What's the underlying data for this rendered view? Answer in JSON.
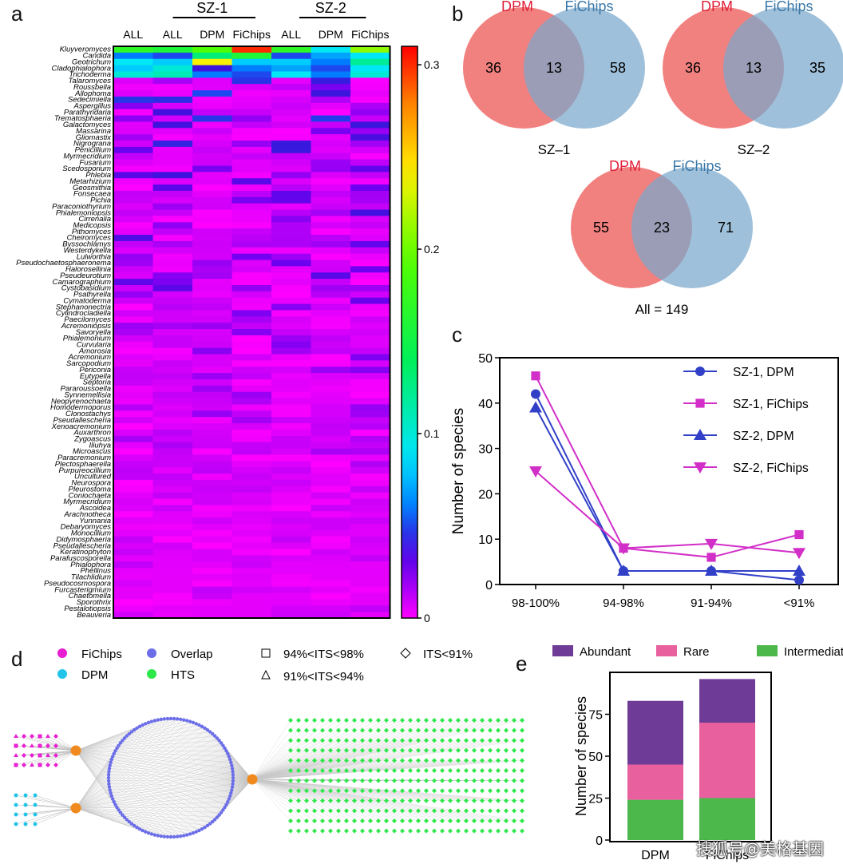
{
  "panel_labels": {
    "a": "a",
    "b": "b",
    "c": "c",
    "d": "d",
    "e": "e"
  },
  "watermark": "搜狐号@美格基因",
  "chart_data": [
    {
      "panel": "a",
      "type": "heatmap",
      "group_headers": [
        "SZ-1",
        "SZ-2"
      ],
      "columns": [
        "ALL",
        "ALL",
        "DPM",
        "FiChips",
        "ALL",
        "DPM",
        "FiChips"
      ],
      "colorbar": {
        "ticks": [
          "0.3",
          "0.2",
          "0.1",
          "0"
        ],
        "range": [
          0,
          0.31
        ]
      },
      "rows": [
        "Kluyveromyces",
        "Candida",
        "Geotrichum",
        "Cladophialophora",
        "Trichoderma",
        "Talaromyces",
        "Roussbella",
        "Allophoma",
        "Sedecimiella",
        "Aspergillus",
        "Parathyridaria",
        "Trematosphaeria",
        "Galactomyces",
        "Massarina",
        "Gliomastix",
        "Nigrograna",
        "Penicillium",
        "Myrmecridium",
        "Fusarium",
        "Scedosporium",
        "Phlebia",
        "Metarhizium",
        "Geosmithia",
        "Fonsecaea",
        "Pichia",
        "Paraconiothyrium",
        "Phialemoniopsis",
        "Cirrenalia",
        "Medicopsis",
        "Pithomyces",
        "Cheiromyces",
        "Byssochlamys",
        "Westerdykella",
        "Lulworthia",
        "Pseudochaetosphaeronema",
        "Halorosellinia",
        "Pseudeurotium",
        "Camarographium",
        "Cystobasidium",
        "Psathyrella",
        "Cymatoderma",
        "Stephanonectria",
        "Cylindrocladiella",
        "Paecilomyces",
        "Acremoniopsis",
        "Savoryella",
        "Phialemonium",
        "Curvularia",
        "Amorosia",
        "Acremonium",
        "Sarcopodium",
        "Periconia",
        "Eutypella",
        "Septoria",
        "Pararoussoella",
        "Synnemellisia",
        "Neopyrenochaeta",
        "Homodermoporus",
        "Clonostachys",
        "Pseudallescheria",
        "Xenoacremonium",
        "Auxarthron",
        "Zygoascus",
        "Iliuhya",
        "Microascus",
        "Paracremonium",
        "Plectosphaerella",
        "Purpureocillium",
        "Uncultured",
        "Neurospora",
        "Pleurostoma",
        "Coniochaeta",
        "Myrmecridium",
        "Ascoidea",
        "Arachnotheca",
        "Yunnania",
        "Debaryomyces",
        "Monocillium",
        "Didymosphaeria",
        "Pseudallescheria",
        "Keratinophyton",
        "Parafuscosporella",
        "Phialophora",
        "Phellinus",
        "Tilachlidium",
        "Pseudocosmospora",
        "Furcasterigmium",
        "Chaetomella",
        "Sporothrix",
        "Pestalotiopsis",
        "Beauveria"
      ],
      "notable_values": [
        [
          0.17,
          0.16,
          0.19,
          0.3,
          0.17,
          0.09,
          0.21
        ],
        [
          0.06,
          0.05,
          0.13,
          0.16,
          0.05,
          0.07,
          0.09
        ],
        [
          0.09,
          0.08,
          0.24,
          0.08,
          0.08,
          0.06,
          0.12
        ],
        [
          0.08,
          0.1,
          0.04,
          0.06,
          0.07,
          0.05,
          0.09
        ],
        [
          0.1,
          0.11,
          0.06,
          0.05,
          0.09,
          0.06,
          0.1
        ]
      ]
    },
    {
      "panel": "b",
      "type": "venn",
      "set_labels": [
        "DPM",
        "FiChips"
      ],
      "diagrams": [
        {
          "caption": "SZ–1",
          "left": "36",
          "overlap": "13",
          "right": "58"
        },
        {
          "caption": "SZ–2",
          "left": "36",
          "overlap": "13",
          "right": "35"
        },
        {
          "caption": "All = 149",
          "left": "55",
          "overlap": "23",
          "right": "71"
        }
      ]
    },
    {
      "panel": "c",
      "type": "line",
      "categories": [
        "98-100%",
        "94-98%",
        "91-94%",
        "<91%"
      ],
      "ylabel": "Number of species",
      "ylim": [
        0,
        50
      ],
      "yticks": [
        0,
        10,
        20,
        30,
        40,
        50
      ],
      "series": [
        {
          "name": "SZ-1, DPM",
          "values": [
            42,
            3,
            3,
            1
          ],
          "color": "#3240c8",
          "marker": "circle"
        },
        {
          "name": "SZ-1, FiChips",
          "values": [
            46,
            8,
            6,
            11
          ],
          "color": "#d22ec8",
          "marker": "square"
        },
        {
          "name": "SZ-2, DPM",
          "values": [
            39,
            3,
            3,
            3
          ],
          "color": "#3240c8",
          "marker": "triangle-up"
        },
        {
          "name": "SZ-2, FiChips",
          "values": [
            25,
            8,
            9,
            7
          ],
          "color": "#d22ec8",
          "marker": "triangle-down"
        }
      ]
    },
    {
      "panel": "d",
      "type": "network",
      "legend_colors": [
        {
          "label": "FiChips",
          "color": "#e81ed2"
        },
        {
          "label": "Overlap",
          "color": "#6b6ee8"
        },
        {
          "label": "DPM",
          "color": "#22c4e8"
        },
        {
          "label": "HTS",
          "color": "#2ee84a"
        }
      ],
      "legend_shapes": [
        {
          "label": "94%<ITS<98%",
          "shape": "square"
        },
        {
          "label": "ITS<91%",
          "shape": "diamond"
        },
        {
          "label": "91%<ITS<94%",
          "shape": "triangle"
        }
      ],
      "node_counts": {
        "fichips": 32,
        "dpm": 12,
        "overlap": 120,
        "hts": 360
      }
    },
    {
      "panel": "e",
      "type": "bar",
      "stacked": true,
      "categories": [
        "DPM",
        "FiChips"
      ],
      "ylabel": "Number of species",
      "ylim": [
        0,
        100
      ],
      "yticks": [
        0,
        25,
        50,
        75
      ],
      "series": [
        {
          "name": "Intermediate",
          "values": [
            24,
            25
          ],
          "color": "#4cb84c"
        },
        {
          "name": "Rare",
          "values": [
            21,
            45
          ],
          "color": "#e8609e"
        },
        {
          "name": "Abundant",
          "values": [
            38,
            26
          ],
          "color": "#6e3b96"
        }
      ]
    }
  ]
}
